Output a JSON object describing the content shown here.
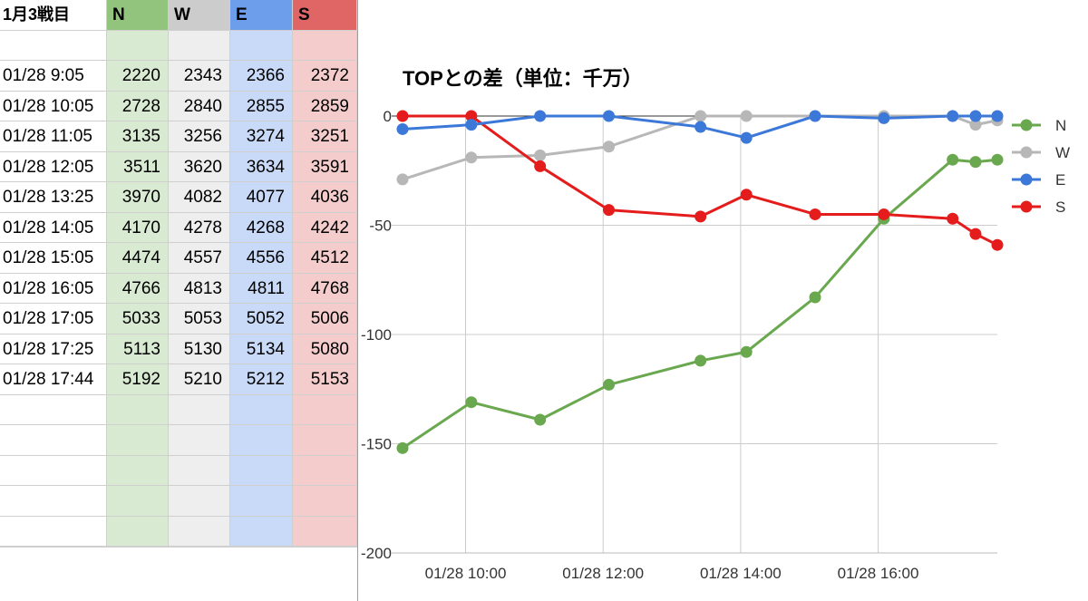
{
  "sheet": {
    "title": "1月3戦目",
    "columns": [
      "N",
      "W",
      "E",
      "S"
    ],
    "rows": [
      {
        "time": "01/28 9:05",
        "values": [
          "2220",
          "2343",
          "2366",
          "2372"
        ]
      },
      {
        "time": "01/28 10:05",
        "values": [
          "2728",
          "2840",
          "2855",
          "2859"
        ]
      },
      {
        "time": "01/28 11:05",
        "values": [
          "3135",
          "3256",
          "3274",
          "3251"
        ]
      },
      {
        "time": "01/28 12:05",
        "values": [
          "3511",
          "3620",
          "3634",
          "3591"
        ]
      },
      {
        "time": "01/28 13:25",
        "values": [
          "3970",
          "4082",
          "4077",
          "4036"
        ]
      },
      {
        "time": "01/28 14:05",
        "values": [
          "4170",
          "4278",
          "4268",
          "4242"
        ]
      },
      {
        "time": "01/28 15:05",
        "values": [
          "4474",
          "4557",
          "4556",
          "4512"
        ]
      },
      {
        "time": "01/28 16:05",
        "values": [
          "4766",
          "4813",
          "4811",
          "4768"
        ]
      },
      {
        "time": "01/28 17:05",
        "values": [
          "5033",
          "5053",
          "5052",
          "5006"
        ]
      },
      {
        "time": "01/28 17:25",
        "values": [
          "5113",
          "5130",
          "5134",
          "5080"
        ]
      },
      {
        "time": "01/28 17:44",
        "values": [
          "5192",
          "5210",
          "5212",
          "5153"
        ]
      }
    ]
  },
  "colors": {
    "N": "#6aa84f",
    "W": "#b7b7b7",
    "E": "#3c78d8",
    "S": "#e51c1c"
  },
  "chart_data": {
    "type": "line",
    "title": "TOPとの差（単位：千万）",
    "xlabel": "",
    "ylabel": "",
    "ylim": [
      -200,
      0
    ],
    "yticks": [
      "0",
      "-50",
      "-100",
      "-150",
      "-200"
    ],
    "xticks": [
      "01/28 10:00",
      "01/28 12:00",
      "01/28 14:00",
      "01/28 16:00"
    ],
    "legend_position": "right",
    "x": [
      "01/28 9:05",
      "01/28 10:05",
      "01/28 11:05",
      "01/28 12:05",
      "01/28 13:25",
      "01/28 14:05",
      "01/28 15:05",
      "01/28 16:05",
      "01/28 17:05",
      "01/28 17:25",
      "01/28 17:44"
    ],
    "series": [
      {
        "name": "N",
        "values": [
          -152,
          -131,
          -139,
          -123,
          -112,
          -108,
          -83,
          -47,
          -20,
          -21,
          -20
        ]
      },
      {
        "name": "W",
        "values": [
          -29,
          -19,
          -18,
          -14,
          0,
          0,
          0,
          0,
          0,
          -4,
          -2
        ]
      },
      {
        "name": "E",
        "values": [
          -6,
          -4,
          0,
          0,
          -5,
          -10,
          0,
          -1,
          0,
          0,
          0
        ]
      },
      {
        "name": "S",
        "values": [
          0,
          0,
          -23,
          -43,
          -46,
          -36,
          -45,
          -45,
          -47,
          -54,
          -59
        ]
      }
    ]
  }
}
